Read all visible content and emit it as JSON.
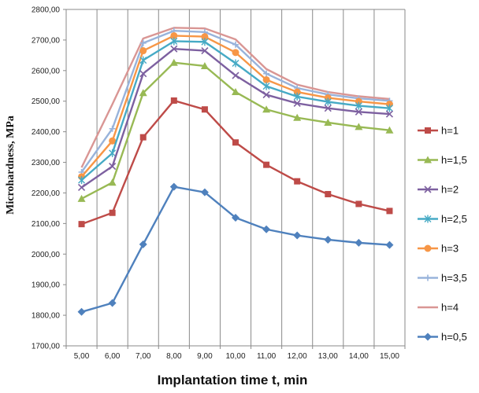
{
  "chart_data": {
    "type": "line",
    "xlabel": "Implantation time t, min",
    "ylabel": "Microhardness, MPa",
    "x": [
      5,
      6,
      7,
      8,
      9,
      10,
      11,
      12,
      13,
      14,
      15
    ],
    "x_tick_labels": [
      "5,00",
      "6,00",
      "7,00",
      "8,00",
      "9,00",
      "10,00",
      "11,00",
      "12,00",
      "13,00",
      "14,00",
      "15,00"
    ],
    "ylim": [
      1700,
      2800
    ],
    "y_ticks": [
      1700,
      1800,
      1900,
      2000,
      2100,
      2200,
      2300,
      2400,
      2500,
      2600,
      2700,
      2800
    ],
    "y_tick_labels": [
      "1700,00",
      "1800,00",
      "1900,00",
      "2000,00",
      "2100,00",
      "2200,00",
      "2300,00",
      "2400,00",
      "2500,00",
      "2600,00",
      "2700,00",
      "2800,00"
    ],
    "grid": "vertical",
    "legend_position": "right",
    "series": [
      {
        "name": "h=1",
        "color": "#be4b48",
        "marker": "square",
        "values": [
          2098,
          2135,
          2382,
          2502,
          2473,
          2365,
          2292,
          2238,
          2196,
          2164,
          2141
        ]
      },
      {
        "name": "h=1,5",
        "color": "#98b954",
        "marker": "triangle",
        "values": [
          2181,
          2234,
          2527,
          2626,
          2615,
          2530,
          2473,
          2446,
          2430,
          2416,
          2405
        ]
      },
      {
        "name": "h=2",
        "color": "#7d60a0",
        "marker": "x",
        "values": [
          2218,
          2287,
          2590,
          2671,
          2665,
          2584,
          2521,
          2493,
          2477,
          2465,
          2458
        ]
      },
      {
        "name": "h=2,5",
        "color": "#46aac5",
        "marker": "star",
        "values": [
          2242,
          2330,
          2634,
          2696,
          2694,
          2624,
          2549,
          2515,
          2498,
          2485,
          2477
        ]
      },
      {
        "name": "h=3",
        "color": "#f79646",
        "marker": "circle",
        "values": [
          2253,
          2370,
          2665,
          2714,
          2711,
          2659,
          2570,
          2530,
          2511,
          2499,
          2490
        ]
      },
      {
        "name": "h=3,5",
        "color": "#98b3db",
        "marker": "plus",
        "values": [
          2268,
          2410,
          2690,
          2730,
          2726,
          2685,
          2590,
          2543,
          2522,
          2509,
          2501
        ]
      },
      {
        "name": "h=4",
        "color": "#d99694",
        "marker": "none",
        "values": [
          2283,
          2490,
          2705,
          2740,
          2738,
          2702,
          2605,
          2554,
          2530,
          2516,
          2507
        ]
      },
      {
        "name": "h=0,5",
        "color": "#4f81bd",
        "marker": "diamond",
        "values": [
          1811,
          1840,
          2032,
          2220,
          2202,
          2119,
          2081,
          2061,
          2047,
          2037,
          2030
        ]
      }
    ]
  }
}
